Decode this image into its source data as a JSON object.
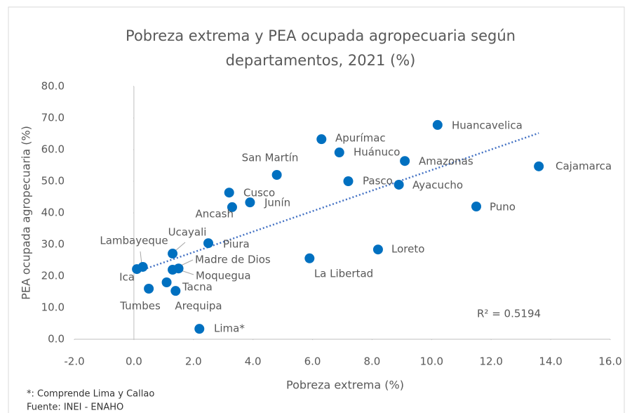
{
  "chart_data": {
    "type": "scatter",
    "title": [
      "Pobreza extrema y PEA ocupada agropecuaria según",
      "departamentos, 2021 (%)"
    ],
    "xlabel": "Pobreza extrema (%)",
    "ylabel": "PEA ocupada agropecuaria (%)",
    "annotation": "R² = 0.5194",
    "notes": [
      "*: Comprende Lima y Callao",
      "Fuente: INEI - ENAHO"
    ],
    "color": "#0070c0",
    "trendline": true,
    "point_labels": [
      "Huancavelica",
      "Apurímac",
      "Huánuco",
      "Amazonas",
      "Cajamarca",
      "San Martín",
      "Pasco",
      "Ayacucho",
      "Cusco",
      "Junín",
      "Ancash",
      "Puno",
      "Piura",
      "Ucayali",
      "Lambayeque",
      "Ica",
      "Madre de Dios",
      "Moquegua",
      "Loreto",
      "La Libertad",
      "Arequipa",
      "Tumbes",
      "Tacna",
      "Lima*"
    ],
    "x": [
      10.2,
      6.3,
      6.9,
      9.1,
      13.6,
      4.8,
      7.2,
      8.9,
      3.2,
      3.9,
      3.3,
      11.5,
      2.5,
      1.3,
      0.3,
      0.1,
      1.5,
      1.3,
      8.2,
      5.9,
      1.1,
      0.5,
      1.4,
      2.2
    ],
    "values": [
      67.8,
      63.3,
      59.1,
      56.4,
      54.7,
      52.0,
      50.0,
      48.9,
      46.4,
      43.3,
      41.8,
      42.0,
      30.4,
      27.1,
      22.9,
      22.2,
      22.4,
      22.0,
      28.4,
      25.6,
      18.0,
      16.0,
      15.3,
      3.3
    ],
    "xlim": [
      -2,
      16
    ],
    "ylim": [
      0,
      80
    ],
    "xticks": [
      {
        "value": -2,
        "label": "-2.0"
      },
      {
        "value": 0,
        "label": "0.0"
      },
      {
        "value": 2,
        "label": "2.0"
      },
      {
        "value": 4,
        "label": "4.0"
      },
      {
        "value": 6,
        "label": "6.0"
      },
      {
        "value": 8,
        "label": "8.0"
      },
      {
        "value": 10,
        "label": "10.0"
      },
      {
        "value": 12,
        "label": "12.0"
      },
      {
        "value": 14,
        "label": "14.0"
      },
      {
        "value": 16,
        "label": "16.0"
      }
    ],
    "yticks": [
      {
        "value": 0,
        "label": "0.0"
      },
      {
        "value": 10,
        "label": "10.0"
      },
      {
        "value": 20,
        "label": "20.0"
      },
      {
        "value": 30,
        "label": "30.0"
      },
      {
        "value": 40,
        "label": "40.0"
      },
      {
        "value": 50,
        "label": "50.0"
      },
      {
        "value": 60,
        "label": "60.0"
      },
      {
        "value": 70,
        "label": "70.0"
      },
      {
        "value": 80,
        "label": "80.0"
      }
    ]
  }
}
